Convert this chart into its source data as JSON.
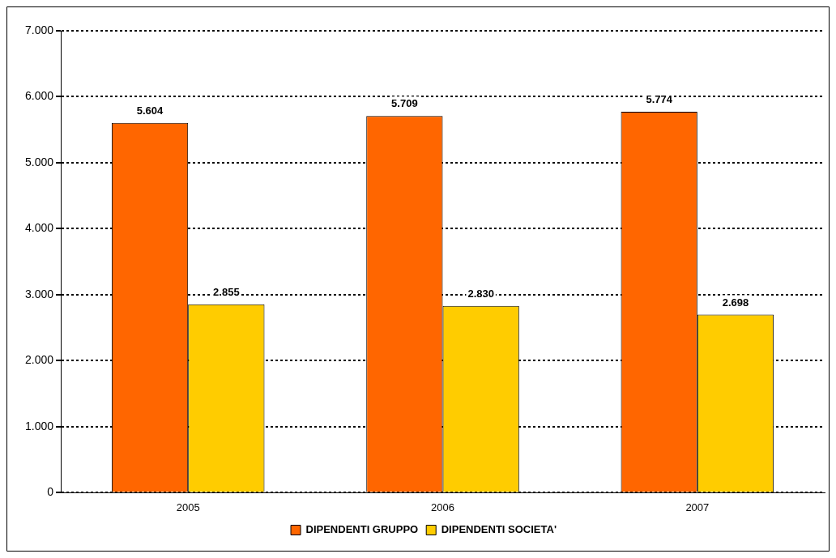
{
  "chart_data": {
    "type": "bar",
    "categories": [
      "2005",
      "2006",
      "2007"
    ],
    "series": [
      {
        "name": "DIPENDENTI GRUPPO",
        "color": "#ff6600",
        "values": [
          5604,
          5709,
          5774
        ],
        "value_labels": [
          "5.604",
          "5.709",
          "5.774"
        ]
      },
      {
        "name": "DIPENDENTI SOCIETA'",
        "color": "#ffcc00",
        "values": [
          2855,
          2830,
          2698
        ],
        "value_labels": [
          "2.855",
          "2.830",
          "2.698"
        ]
      }
    ],
    "ylim": [
      0,
      7000
    ],
    "yticks": [
      {
        "value": 0,
        "label": "0"
      },
      {
        "value": 1000,
        "label": "1.000"
      },
      {
        "value": 2000,
        "label": "2.000"
      },
      {
        "value": 3000,
        "label": "3.000"
      },
      {
        "value": 4000,
        "label": "4.000"
      },
      {
        "value": 5000,
        "label": "5.000"
      },
      {
        "value": 6000,
        "label": "6.000"
      },
      {
        "value": 7000,
        "label": "7.000"
      }
    ],
    "grid": "y",
    "line_style": "dashed",
    "legend": "bottom"
  }
}
